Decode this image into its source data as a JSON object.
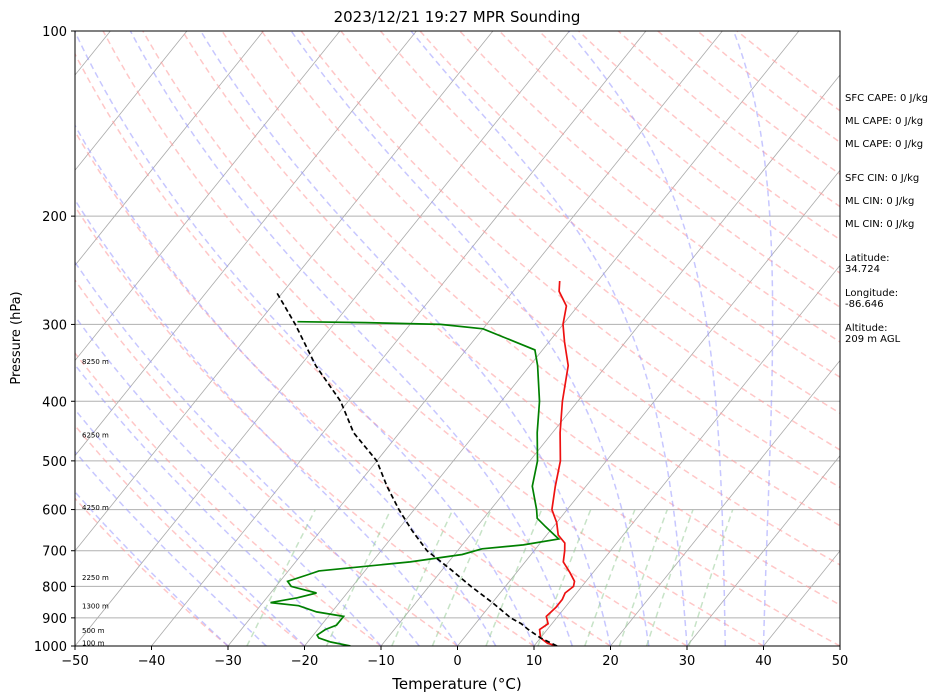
{
  "chart_data": {
    "type": "line",
    "title": "2023/12/21 19:27 MPR Sounding",
    "xlabel": "Temperature (°C)",
    "ylabel": "Pressure (hPa)",
    "xlim": [
      -50,
      50
    ],
    "ylim": [
      1000,
      100
    ],
    "y_scale": "log",
    "skew": "skew-T",
    "grid": true,
    "x_ticks": [
      -50,
      -40,
      -30,
      -20,
      -10,
      0,
      10,
      20,
      30,
      40,
      50
    ],
    "x_tick_labels": [
      "−50",
      "−40",
      "−30",
      "−20",
      "−10",
      "0",
      "10",
      "20",
      "30",
      "40",
      "50"
    ],
    "y_ticks": [
      1000,
      900,
      800,
      700,
      600,
      500,
      400,
      300,
      200,
      100
    ],
    "y_tick_labels": [
      "1000",
      "900",
      "800",
      "700",
      "600",
      "500",
      "400",
      "300",
      "200",
      "100"
    ],
    "height_labels": [
      {
        "label": "100 m",
        "p": 990
      },
      {
        "label": "500 m",
        "p": 945
      },
      {
        "label": "1300 m",
        "p": 862
      },
      {
        "label": "2250 m",
        "p": 775
      },
      {
        "label": "4250 m",
        "p": 597
      },
      {
        "label": "6250 m",
        "p": 455
      },
      {
        "label": "8250 m",
        "p": 345
      }
    ],
    "series": [
      {
        "color": "#ee1111",
        "style": "solid",
        "points": [
          [
            1000,
            13
          ],
          [
            990,
            11.5
          ],
          [
            970,
            10
          ],
          [
            940,
            9
          ],
          [
            920,
            9.5
          ],
          [
            895,
            8.5
          ],
          [
            865,
            8.8
          ],
          [
            840,
            8.8
          ],
          [
            820,
            8.5
          ],
          [
            800,
            8.9
          ],
          [
            785,
            8.5
          ],
          [
            760,
            7
          ],
          [
            730,
            5
          ],
          [
            700,
            4
          ],
          [
            680,
            3.2
          ],
          [
            660,
            1.5
          ],
          [
            630,
            0
          ],
          [
            600,
            -2
          ],
          [
            550,
            -4
          ],
          [
            500,
            -6
          ],
          [
            450,
            -9
          ],
          [
            400,
            -12
          ],
          [
            350,
            -15
          ],
          [
            320,
            -18
          ],
          [
            300,
            -20
          ],
          [
            280,
            -21.5
          ],
          [
            265,
            -24
          ],
          [
            255,
            -25
          ]
        ]
      },
      {
        "color": "#008000",
        "style": "solid",
        "points": [
          [
            1000,
            -14
          ],
          [
            985,
            -17
          ],
          [
            970,
            -19
          ],
          [
            960,
            -19.5
          ],
          [
            940,
            -19
          ],
          [
            925,
            -18
          ],
          [
            905,
            -18
          ],
          [
            895,
            -18
          ],
          [
            880,
            -22
          ],
          [
            860,
            -25
          ],
          [
            850,
            -29
          ],
          [
            835,
            -26
          ],
          [
            820,
            -24
          ],
          [
            800,
            -28
          ],
          [
            785,
            -29
          ],
          [
            765,
            -27
          ],
          [
            755,
            -26
          ],
          [
            730,
            -15
          ],
          [
            710,
            -9
          ],
          [
            695,
            -7
          ],
          [
            685,
            -2
          ],
          [
            670,
            2
          ],
          [
            660,
            1
          ],
          [
            640,
            -1
          ],
          [
            620,
            -3
          ],
          [
            600,
            -4
          ],
          [
            550,
            -7
          ],
          [
            500,
            -9
          ],
          [
            450,
            -12
          ],
          [
            400,
            -15
          ],
          [
            350,
            -19
          ],
          [
            330,
            -21
          ],
          [
            320,
            -24.5
          ],
          [
            305,
            -30
          ],
          [
            300,
            -36
          ],
          [
            298,
            -46
          ],
          [
            297,
            -55
          ]
        ]
      },
      {
        "color": "#000000",
        "style": "dashed",
        "points": [
          [
            1000,
            13
          ],
          [
            970,
            10
          ],
          [
            940,
            7.5
          ],
          [
            920,
            6
          ],
          [
            900,
            4
          ],
          [
            850,
            0
          ],
          [
            800,
            -4.5
          ],
          [
            750,
            -9
          ],
          [
            700,
            -14
          ],
          [
            650,
            -18
          ],
          [
            600,
            -22
          ],
          [
            550,
            -26
          ],
          [
            500,
            -30
          ],
          [
            450,
            -36
          ],
          [
            400,
            -41
          ],
          [
            350,
            -48
          ],
          [
            300,
            -55
          ],
          [
            265,
            -61
          ]
        ]
      }
    ],
    "annotations": {
      "sfc_cape": "SFC CAPE: 0 J/kg",
      "ml_cape_1": "ML CAPE: 0 J/kg",
      "ml_cape_2": "ML CAPE: 0 J/kg",
      "sfc_cin": "SFC CIN: 0 J/kg",
      "ml_cin_1": "ML CIN: 0 J/kg",
      "ml_cin_2": "ML CIN: 0 J/kg",
      "latitude": "Latitude:\n34.724",
      "longitude": "Longitude:\n-86.646",
      "altitude": "Altitude:\n209 m AGL"
    },
    "reference_lines": {
      "isotherms_color": "#aaaaaa",
      "dry_adiabats_color": "#ff9999",
      "moist_adiabats_color": "#9999ff",
      "mixing_ratio_color": "#99cc99"
    }
  }
}
